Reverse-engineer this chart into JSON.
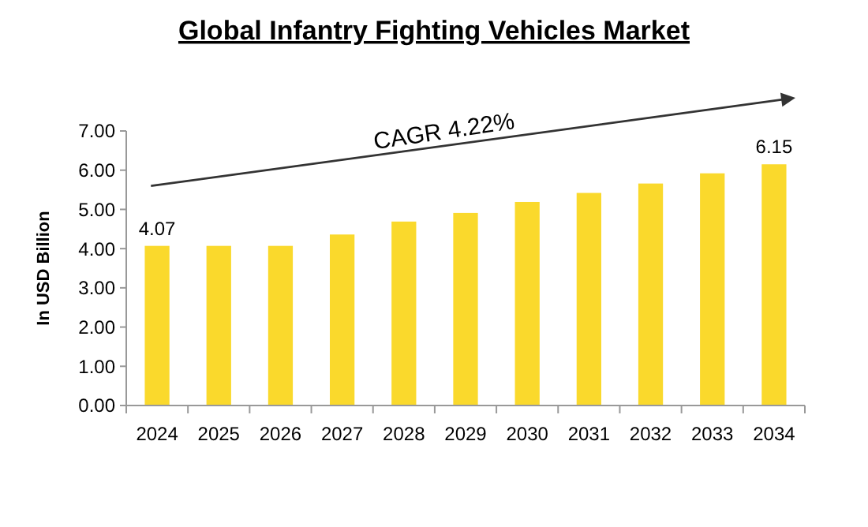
{
  "chart_data": {
    "type": "bar",
    "title": "Global Infantry Fighting Vehicles Market",
    "ylabel": "In USD Billion",
    "categories": [
      "2024",
      "2025",
      "2026",
      "2027",
      "2028",
      "2029",
      "2030",
      "2031",
      "2032",
      "2033",
      "2034"
    ],
    "values": [
      4.07,
      4.07,
      4.07,
      4.36,
      4.69,
      4.91,
      5.19,
      5.42,
      5.66,
      5.92,
      6.15
    ],
    "value_labels": [
      "4.07",
      null,
      null,
      null,
      null,
      null,
      null,
      null,
      null,
      null,
      "6.15"
    ],
    "color": "#fad92c",
    "ylim": [
      0,
      7
    ],
    "yticks": [
      {
        "value": 0,
        "label": "0.00"
      },
      {
        "value": 1,
        "label": "1.00"
      },
      {
        "value": 2,
        "label": "2.00"
      },
      {
        "value": 3,
        "label": "3.00"
      },
      {
        "value": 4,
        "label": "4.00"
      },
      {
        "value": 5,
        "label": "5.00"
      },
      {
        "value": 6,
        "label": "6.00"
      },
      {
        "value": 7,
        "label": "7.00"
      }
    ],
    "grid": false,
    "annotations": [
      "CAGR 4.22%"
    ]
  }
}
